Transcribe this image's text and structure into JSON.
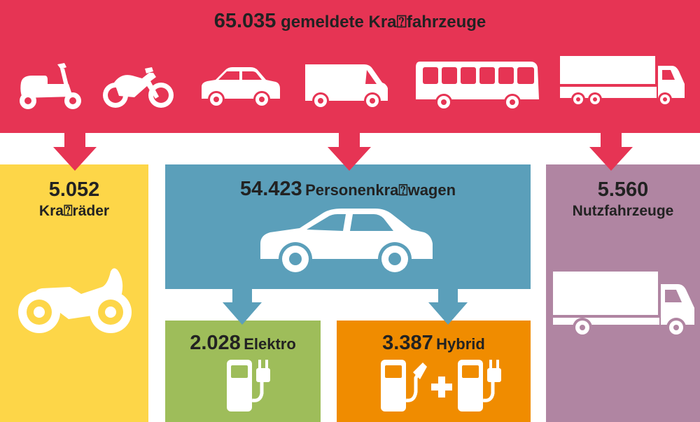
{
  "colors": {
    "header": "#e63454",
    "motorcycles": "#fdd648",
    "cars": "#5b9fba",
    "electric": "#9ebd5a",
    "hybrid": "#f08c00",
    "commercial": "#b085a2"
  },
  "header": {
    "total_value": "65.035",
    "total_label": "gemeldete Kra⍰fahrzeuge",
    "icons": [
      "scooter-icon",
      "motorbike-icon",
      "sedan-icon",
      "van-icon",
      "bus-icon",
      "truck-trailer-icon"
    ]
  },
  "motorcycles": {
    "value": "5.052",
    "label": "Kra⍰räder",
    "icon": "motorcycle-icon"
  },
  "cars": {
    "value": "54.423",
    "label": "Personenkra⍰wagen",
    "icon": "car-icon"
  },
  "electric": {
    "value": "2.028",
    "label": "Elektro",
    "icon": "charging-station-plug-icon"
  },
  "hybrid": {
    "value": "3.387",
    "label": "Hybrid",
    "icons": [
      "fuel-pump-icon",
      "plus-icon",
      "charging-station-plug-icon"
    ]
  },
  "commercial": {
    "value": "5.560",
    "label": "Nutzfahrzeuge",
    "icon": "box-truck-icon"
  }
}
